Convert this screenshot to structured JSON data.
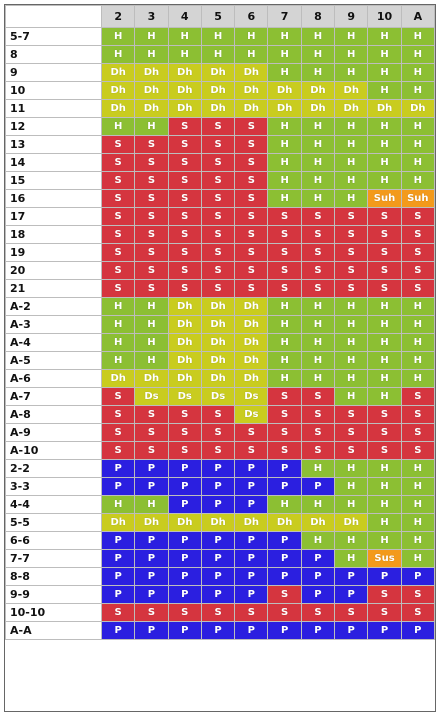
{
  "header": {
    "dealer_cards": [
      "2",
      "3",
      "4",
      "5",
      "6",
      "7",
      "8",
      "9",
      "10",
      "A"
    ]
  },
  "colors": {
    "H": "#8cbf33",
    "Dh": "#c9cc1f",
    "Ds": "#c9cc1f",
    "S": "#d5353f",
    "P": "#2b1fe0",
    "Suh": "#f39a1b",
    "Sus": "#f39a1b"
  },
  "rows": [
    {
      "label": "5-7",
      "cells": [
        "H",
        "H",
        "H",
        "H",
        "H",
        "H",
        "H",
        "H",
        "H",
        "H"
      ]
    },
    {
      "label": "8",
      "cells": [
        "H",
        "H",
        "H",
        "H",
        "H",
        "H",
        "H",
        "H",
        "H",
        "H"
      ]
    },
    {
      "label": "9",
      "cells": [
        "Dh",
        "Dh",
        "Dh",
        "Dh",
        "Dh",
        "H",
        "H",
        "H",
        "H",
        "H"
      ]
    },
    {
      "label": "10",
      "cells": [
        "Dh",
        "Dh",
        "Dh",
        "Dh",
        "Dh",
        "Dh",
        "Dh",
        "Dh",
        "H",
        "H"
      ]
    },
    {
      "label": "11",
      "cells": [
        "Dh",
        "Dh",
        "Dh",
        "Dh",
        "Dh",
        "Dh",
        "Dh",
        "Dh",
        "Dh",
        "Dh"
      ]
    },
    {
      "label": "12",
      "cells": [
        "H",
        "H",
        "S",
        "S",
        "S",
        "H",
        "H",
        "H",
        "H",
        "H"
      ]
    },
    {
      "label": "13",
      "cells": [
        "S",
        "S",
        "S",
        "S",
        "S",
        "H",
        "H",
        "H",
        "H",
        "H"
      ]
    },
    {
      "label": "14",
      "cells": [
        "S",
        "S",
        "S",
        "S",
        "S",
        "H",
        "H",
        "H",
        "H",
        "H"
      ]
    },
    {
      "label": "15",
      "cells": [
        "S",
        "S",
        "S",
        "S",
        "S",
        "H",
        "H",
        "H",
        "H",
        "H"
      ]
    },
    {
      "label": "16",
      "cells": [
        "S",
        "S",
        "S",
        "S",
        "S",
        "H",
        "H",
        "H",
        "Suh",
        "Suh"
      ]
    },
    {
      "label": "17",
      "cells": [
        "S",
        "S",
        "S",
        "S",
        "S",
        "S",
        "S",
        "S",
        "S",
        "S"
      ]
    },
    {
      "label": "18",
      "cells": [
        "S",
        "S",
        "S",
        "S",
        "S",
        "S",
        "S",
        "S",
        "S",
        "S"
      ]
    },
    {
      "label": "19",
      "cells": [
        "S",
        "S",
        "S",
        "S",
        "S",
        "S",
        "S",
        "S",
        "S",
        "S"
      ]
    },
    {
      "label": "20",
      "cells": [
        "S",
        "S",
        "S",
        "S",
        "S",
        "S",
        "S",
        "S",
        "S",
        "S"
      ]
    },
    {
      "label": "21",
      "cells": [
        "S",
        "S",
        "S",
        "S",
        "S",
        "S",
        "S",
        "S",
        "S",
        "S"
      ]
    },
    {
      "label": "A-2",
      "cells": [
        "H",
        "H",
        "Dh",
        "Dh",
        "Dh",
        "H",
        "H",
        "H",
        "H",
        "H"
      ]
    },
    {
      "label": "A-3",
      "cells": [
        "H",
        "H",
        "Dh",
        "Dh",
        "Dh",
        "H",
        "H",
        "H",
        "H",
        "H"
      ]
    },
    {
      "label": "A-4",
      "cells": [
        "H",
        "H",
        "Dh",
        "Dh",
        "Dh",
        "H",
        "H",
        "H",
        "H",
        "H"
      ]
    },
    {
      "label": "A-5",
      "cells": [
        "H",
        "H",
        "Dh",
        "Dh",
        "Dh",
        "H",
        "H",
        "H",
        "H",
        "H"
      ]
    },
    {
      "label": "A-6",
      "cells": [
        "Dh",
        "Dh",
        "Dh",
        "Dh",
        "Dh",
        "H",
        "H",
        "H",
        "H",
        "H"
      ]
    },
    {
      "label": "A-7",
      "cells": [
        "S",
        "Ds",
        "Ds",
        "Ds",
        "Ds",
        "S",
        "S",
        "H",
        "H",
        "S"
      ]
    },
    {
      "label": "A-8",
      "cells": [
        "S",
        "S",
        "S",
        "S",
        "Ds",
        "S",
        "S",
        "S",
        "S",
        "S"
      ]
    },
    {
      "label": "A-9",
      "cells": [
        "S",
        "S",
        "S",
        "S",
        "S",
        "S",
        "S",
        "S",
        "S",
        "S"
      ]
    },
    {
      "label": "A-10",
      "cells": [
        "S",
        "S",
        "S",
        "S",
        "S",
        "S",
        "S",
        "S",
        "S",
        "S"
      ]
    },
    {
      "label": "2-2",
      "cells": [
        "P",
        "P",
        "P",
        "P",
        "P",
        "P",
        "H",
        "H",
        "H",
        "H"
      ]
    },
    {
      "label": "3-3",
      "cells": [
        "P",
        "P",
        "P",
        "P",
        "P",
        "P",
        "P",
        "H",
        "H",
        "H"
      ]
    },
    {
      "label": "4-4",
      "cells": [
        "H",
        "H",
        "P",
        "P",
        "P",
        "H",
        "H",
        "H",
        "H",
        "H"
      ]
    },
    {
      "label": "5-5",
      "cells": [
        "Dh",
        "Dh",
        "Dh",
        "Dh",
        "Dh",
        "Dh",
        "Dh",
        "Dh",
        "H",
        "H"
      ]
    },
    {
      "label": "6-6",
      "cells": [
        "P",
        "P",
        "P",
        "P",
        "P",
        "P",
        "H",
        "H",
        "H",
        "H"
      ]
    },
    {
      "label": "7-7",
      "cells": [
        "P",
        "P",
        "P",
        "P",
        "P",
        "P",
        "P",
        "H",
        "Sus",
        "H"
      ]
    },
    {
      "label": "8-8",
      "cells": [
        "P",
        "P",
        "P",
        "P",
        "P",
        "P",
        "P",
        "P",
        "P",
        "P"
      ]
    },
    {
      "label": "9-9",
      "cells": [
        "P",
        "P",
        "P",
        "P",
        "P",
        "S",
        "P",
        "P",
        "S",
        "S"
      ]
    },
    {
      "label": "10-10",
      "cells": [
        "S",
        "S",
        "S",
        "S",
        "S",
        "S",
        "S",
        "S",
        "S",
        "S"
      ]
    },
    {
      "label": "A-A",
      "cells": [
        "P",
        "P",
        "P",
        "P",
        "P",
        "P",
        "P",
        "P",
        "P",
        "P"
      ]
    }
  ]
}
